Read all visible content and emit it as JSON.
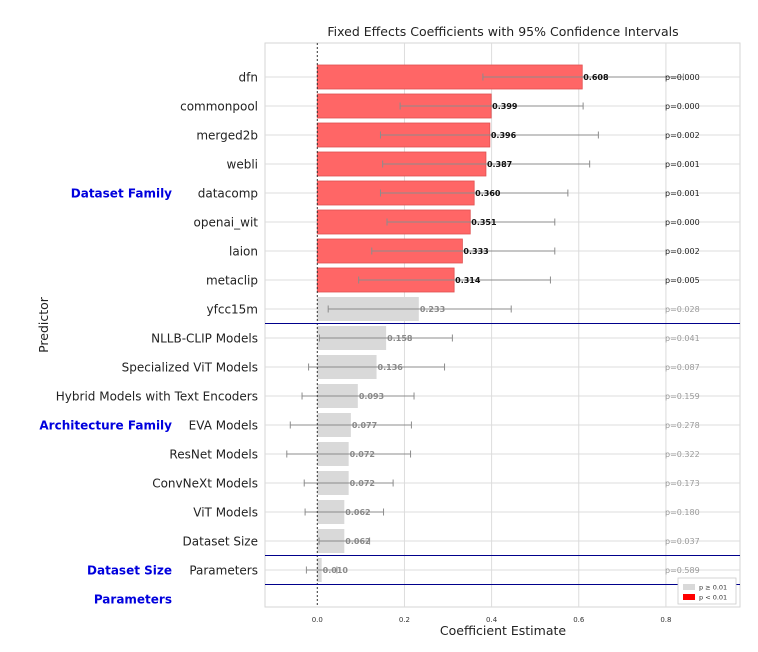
{
  "chart_data": {
    "type": "bar",
    "orientation": "horizontal",
    "title": "Fixed Effects Coefficients with 95% Confidence Intervals",
    "xlabel": "Coefficient Estimate",
    "ylabel": "Predictor",
    "xlim": [
      -0.12,
      0.97
    ],
    "x_ticks": [
      "0.0",
      "0.2",
      "0.4",
      "0.6",
      "0.8"
    ],
    "x_tick_values": [
      0.0,
      0.2,
      0.4,
      0.6,
      0.8
    ],
    "grid": true,
    "legend": {
      "placement": "bottom-right",
      "entries": [
        {
          "label": "p ≥ 0.01",
          "color": "#d9d9d9"
        },
        {
          "label": "p < 0.01",
          "color": "#ff0000"
        }
      ]
    },
    "groups": [
      {
        "name": "Dataset Family",
        "label_row": 4,
        "divider_after": 8
      },
      {
        "name": "Architecture Family",
        "label_row": 12,
        "divider_after": 16
      },
      {
        "name": "Dataset Size",
        "label_row": 17,
        "divider_after": 17
      },
      {
        "name": "Parameters",
        "label_row": 18
      }
    ],
    "predictors": [
      {
        "name": "dfn",
        "value": 0.608,
        "label": "0.608",
        "ci": [
          0.38,
          0.84
        ],
        "p": "p=0.000",
        "significant": true
      },
      {
        "name": "commonpool",
        "value": 0.399,
        "label": "0.399",
        "ci": [
          0.19,
          0.61
        ],
        "p": "p=0.000",
        "significant": true
      },
      {
        "name": "merged2b",
        "value": 0.396,
        "label": "0.396",
        "ci": [
          0.145,
          0.645
        ],
        "p": "p=0.002",
        "significant": true
      },
      {
        "name": "webli",
        "value": 0.387,
        "label": "0.387",
        "ci": [
          0.15,
          0.625
        ],
        "p": "p=0.001",
        "significant": true
      },
      {
        "name": "datacomp",
        "value": 0.36,
        "label": "0.360",
        "ci": [
          0.145,
          0.575
        ],
        "p": "p=0.001",
        "significant": true
      },
      {
        "name": "openai_wit",
        "value": 0.351,
        "label": "0.351",
        "ci": [
          0.16,
          0.545
        ],
        "p": "p=0.000",
        "significant": true
      },
      {
        "name": "laion",
        "value": 0.333,
        "label": "0.333",
        "ci": [
          0.125,
          0.545
        ],
        "p": "p=0.002",
        "significant": true
      },
      {
        "name": "metaclip",
        "value": 0.314,
        "label": "0.314",
        "ci": [
          0.095,
          0.535
        ],
        "p": "p=0.005",
        "significant": true
      },
      {
        "name": "yfcc15m",
        "value": 0.233,
        "label": "0.233",
        "ci": [
          0.025,
          0.445
        ],
        "p": "p=0.028",
        "significant": false
      },
      {
        "name": "NLLB-CLIP Models",
        "value": 0.158,
        "label": "0.158",
        "ci": [
          0.005,
          0.31
        ],
        "p": "p=0.041",
        "significant": false
      },
      {
        "name": "Specialized ViT Models",
        "value": 0.136,
        "label": "0.136",
        "ci": [
          -0.02,
          0.292
        ],
        "p": "p=0.087",
        "significant": false
      },
      {
        "name": "Hybrid Models with Text Encoders",
        "value": 0.093,
        "label": "0.093",
        "ci": [
          -0.035,
          0.222
        ],
        "p": "p=0.159",
        "significant": false
      },
      {
        "name": "EVA Models",
        "value": 0.077,
        "label": "0.077",
        "ci": [
          -0.062,
          0.216
        ],
        "p": "p=0.278",
        "significant": false
      },
      {
        "name": "ResNet Models",
        "value": 0.072,
        "label": "0.072",
        "ci": [
          -0.07,
          0.214
        ],
        "p": "p=0.322",
        "significant": false
      },
      {
        "name": "ConvNeXt Models",
        "value": 0.072,
        "label": "0.072",
        "ci": [
          -0.03,
          0.174
        ],
        "p": "p=0.173",
        "significant": false
      },
      {
        "name": "ViT Models",
        "value": 0.062,
        "label": "0.062",
        "ci": [
          -0.028,
          0.152
        ],
        "p": "p=0.180",
        "significant": false
      },
      {
        "name": "Dataset Size",
        "value": 0.062,
        "label": "0.062",
        "ci": [
          0.004,
          0.12
        ],
        "p": "p=0.037",
        "significant": false
      },
      {
        "name": "Parameters",
        "value": 0.01,
        "label": "0.010",
        "ci": [
          -0.025,
          0.045
        ],
        "p": "p=0.589",
        "significant": false
      }
    ],
    "colors": {
      "significant": "#ff6666",
      "nonsignificant": "#d9d9d9",
      "group_label": "#0000dd",
      "divider": "#00008b",
      "errorbar": "#8c8c8c",
      "grid": "#dcdcdc"
    }
  }
}
